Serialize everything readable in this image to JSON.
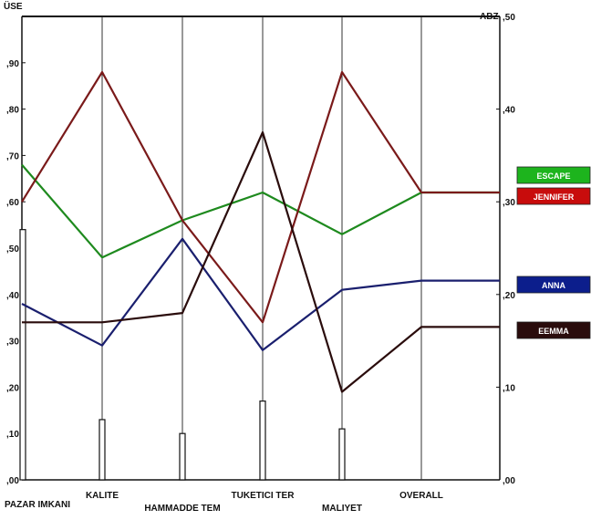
{
  "chart_data": {
    "type": "line",
    "left_axis": {
      "title": "ÜSE",
      "min": 0,
      "max": 1.0,
      "ticks": [
        ",00",
        ",10",
        ",20",
        ",30",
        ",40",
        ",50",
        ",60",
        ",70",
        ",80",
        ",90"
      ]
    },
    "right_axis": {
      "title": "ABZ",
      "min": 0,
      "max": 0.5,
      "ticks": [
        ",00",
        ",10",
        ",20",
        ",30",
        ",40",
        ",50"
      ]
    },
    "categories": [
      "PAZAR IMKANI",
      "KALITE",
      "HAMMADDE TEM",
      "TUKETICI TER",
      "MALIYET",
      "OVERALL"
    ],
    "bars": [
      0.54,
      0.13,
      0.1,
      0.17,
      0.11,
      0
    ],
    "series": [
      {
        "name": "ESCAPE",
        "color": "#1e8a1e",
        "values": [
          0.68,
          0.48,
          0.56,
          0.62,
          0.53,
          0.62
        ]
      },
      {
        "name": "JENNIFER",
        "color": "#7a1a1a",
        "values": [
          0.6,
          0.88,
          0.56,
          0.34,
          0.88,
          0.62
        ]
      },
      {
        "name": "ANNA",
        "color": "#1a1f6e",
        "values": [
          0.38,
          0.29,
          0.52,
          0.28,
          0.41,
          0.43
        ]
      },
      {
        "name": "EEMMA",
        "color": "#2a0c0c",
        "values": [
          0.34,
          0.34,
          0.36,
          0.75,
          0.19,
          0.33
        ]
      }
    ],
    "legend": [
      {
        "label": "ESCAPE",
        "color": "#1db41d"
      },
      {
        "label": "JENNIFER",
        "color": "#c80c0c"
      },
      {
        "label": "ANNA",
        "color": "#0c1e8c"
      },
      {
        "label": "EEMMA",
        "color": "#2a0c0c"
      }
    ]
  }
}
